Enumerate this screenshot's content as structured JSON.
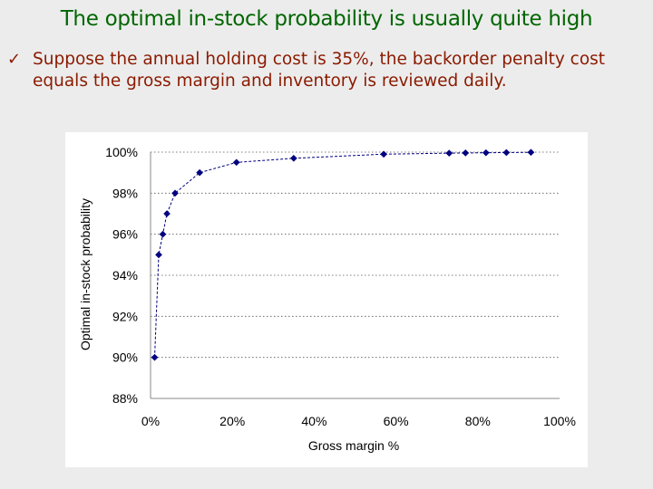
{
  "slide": {
    "title": "The optimal in-stock probability is usually quite high",
    "bullet_marker": "ü",
    "bullet_text": "Suppose the annual holding cost is 35%, the backorder penalty cost equals the gross margin and inventory is reviewed daily."
  },
  "colors": {
    "title": "#006600",
    "bullet": "#8b1a00",
    "series": "#000080"
  },
  "chart_data": {
    "type": "line",
    "title": "",
    "xlabel": "Gross margin %",
    "ylabel": "Optimal in-stock probability",
    "xlim": [
      0,
      100
    ],
    "ylim": [
      88,
      100
    ],
    "x_ticks": [
      "0%",
      "20%",
      "40%",
      "60%",
      "80%",
      "100%"
    ],
    "y_ticks": [
      "88%",
      "90%",
      "92%",
      "94%",
      "96%",
      "98%",
      "100%"
    ],
    "grid": "horizontal dotted",
    "legend": "none",
    "series": [
      {
        "marker": "diamond",
        "x": [
          1,
          2,
          3,
          4,
          6,
          12,
          21,
          35,
          57,
          73,
          77,
          82,
          87,
          93
        ],
        "y": [
          90.0,
          95.0,
          96.0,
          97.0,
          98.0,
          99.0,
          99.5,
          99.7,
          99.9,
          99.95,
          99.96,
          99.97,
          99.98,
          99.99
        ]
      }
    ]
  }
}
